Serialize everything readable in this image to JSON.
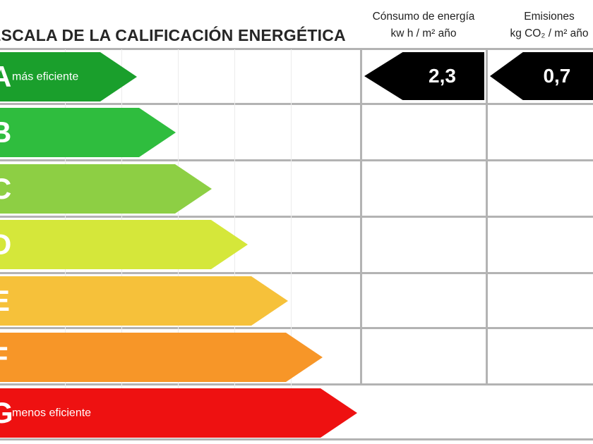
{
  "header": {
    "title": "ESCALA DE LA CALIFICACIÓN ENERGÉTICA",
    "consumo_line1": "Cónsumo de energía",
    "consumo_line2": "kw h / m² año",
    "emisiones_line1": "Emisiones",
    "emisiones_line2": "kg CO₂ / m² año"
  },
  "ratings": [
    {
      "letter": "A",
      "sub": "más eficiente",
      "color": "#1a9f2c"
    },
    {
      "letter": "B",
      "sub": "",
      "color": "#2fbd3e"
    },
    {
      "letter": "C",
      "sub": "",
      "color": "#8dcf44"
    },
    {
      "letter": "D",
      "sub": "",
      "color": "#d5e73a"
    },
    {
      "letter": "E",
      "sub": "",
      "color": "#f6c13a"
    },
    {
      "letter": "F",
      "sub": "",
      "color": "#f79628"
    },
    {
      "letter": "G",
      "sub": "menos eficiente",
      "color": "#ee1111"
    }
  ],
  "values": {
    "consumo": "2,3",
    "emisiones": "0,7",
    "rating_index": 0
  }
}
